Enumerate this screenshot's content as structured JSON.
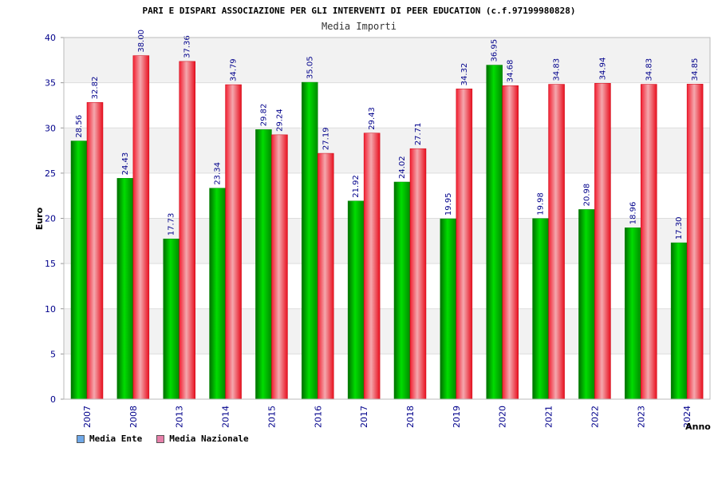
{
  "chart_data": {
    "type": "bar",
    "title": "PARI E DISPARI ASSOCIAZIONE PER GLI INTERVENTI DI PEER EDUCATION (c.f.97199980828)",
    "subtitle": "Media Importi",
    "xlabel": "Anno",
    "ylabel": "Euro",
    "ylim": [
      0,
      40
    ],
    "yticks": [
      0,
      5,
      10,
      15,
      20,
      25,
      30,
      35,
      40
    ],
    "categories": [
      "2007",
      "2008",
      "2013",
      "2014",
      "2015",
      "2016",
      "2017",
      "2018",
      "2019",
      "2020",
      "2021",
      "2022",
      "2023",
      "2024"
    ],
    "series": [
      {
        "name": "Media Ente",
        "color": "#00cc00",
        "values": [
          28.56,
          24.43,
          17.73,
          23.34,
          29.82,
          35.05,
          21.92,
          24.02,
          19.95,
          36.95,
          19.98,
          20.98,
          18.96,
          17.3
        ],
        "labels": [
          "28.56",
          "24.43",
          "17.73",
          "23.34",
          "29.82",
          "35.05",
          "21.92",
          "24.02",
          "19.95",
          "36.95",
          "19.98",
          "20.98",
          "18.96",
          "17.30"
        ]
      },
      {
        "name": "Media Nazionale",
        "color": "#ee1c2c",
        "values": [
          32.82,
          38.0,
          37.36,
          34.79,
          29.24,
          27.19,
          29.43,
          27.71,
          34.32,
          34.68,
          34.83,
          34.94,
          34.83,
          34.85
        ],
        "labels": [
          "32.82",
          "38.00",
          "37.36",
          "34.79",
          "29.24",
          "27.19",
          "29.43",
          "27.71",
          "34.32",
          "34.68",
          "34.83",
          "34.94",
          "34.83",
          "34.85"
        ]
      }
    ],
    "grid": true,
    "legend_position": "bottom-left"
  },
  "legend": {
    "items": [
      {
        "label": "Media Ente",
        "swatch_color": "#6fa8e8"
      },
      {
        "label": "Media Nazionale",
        "swatch_color": "#e67fa9"
      }
    ]
  }
}
